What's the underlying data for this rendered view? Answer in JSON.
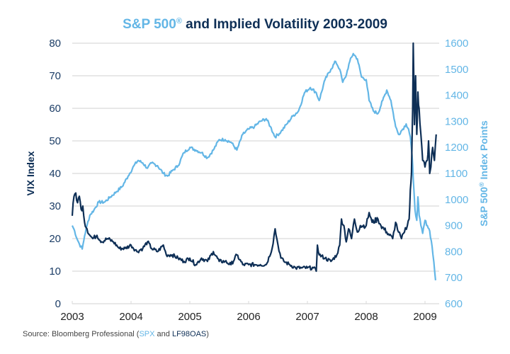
{
  "chart_data": {
    "type": "line",
    "title": {
      "part1": "S&P 500",
      "reg": "®",
      "part2": " and Implied Volatility 2003-2009"
    },
    "ylabel_left": "VIX Index",
    "ylabel_right": {
      "text": "S&P 500",
      "reg": "®",
      "suffix": " Index Points"
    },
    "xlabel": "",
    "x_ticks": [
      "2003",
      "2004",
      "2005",
      "2006",
      "2007",
      "2008",
      "2009"
    ],
    "y_left_ticks": [
      "0",
      "10",
      "20",
      "30",
      "40",
      "50",
      "60",
      "70",
      "80"
    ],
    "y_right_ticks": [
      "600",
      "700",
      "800",
      "900",
      "1000",
      "1100",
      "1200",
      "1300",
      "1400",
      "1500",
      "1600"
    ],
    "ylim_left": [
      0,
      80
    ],
    "ylim_right": [
      600,
      1600
    ],
    "xlim": [
      2003.0,
      2009.2
    ],
    "grid": true,
    "colors": {
      "vix": "#0e2f56",
      "spx": "#63b6e6",
      "grid": "#d9d9d9"
    },
    "series": [
      {
        "name": "S&P 500",
        "axis": "right",
        "color": "#63b6e6",
        "x": [
          2003.0,
          2003.04,
          2003.08,
          2003.12,
          2003.17,
          2003.21,
          2003.25,
          2003.3,
          2003.37,
          2003.45,
          2003.55,
          2003.65,
          2003.75,
          2003.85,
          2003.95,
          2004.05,
          2004.12,
          2004.2,
          2004.28,
          2004.35,
          2004.45,
          2004.55,
          2004.62,
          2004.7,
          2004.8,
          2004.9,
          2005.0,
          2005.1,
          2005.2,
          2005.3,
          2005.4,
          2005.5,
          2005.6,
          2005.7,
          2005.8,
          2005.9,
          2006.0,
          2006.1,
          2006.2,
          2006.3,
          2006.37,
          2006.45,
          2006.55,
          2006.65,
          2006.75,
          2006.85,
          2006.95,
          2007.05,
          2007.15,
          2007.2,
          2007.3,
          2007.4,
          2007.48,
          2007.55,
          2007.6,
          2007.65,
          2007.72,
          2007.78,
          2007.85,
          2007.92,
          2008.0,
          2008.05,
          2008.12,
          2008.2,
          2008.28,
          2008.35,
          2008.42,
          2008.5,
          2008.55,
          2008.62,
          2008.68,
          2008.72,
          2008.75,
          2008.78,
          2008.8,
          2008.83,
          2008.86,
          2008.88,
          2008.9,
          2008.93,
          2008.96,
          2009.0,
          2009.04,
          2009.08,
          2009.12,
          2009.15,
          2009.18
        ],
        "values": [
          900,
          880,
          850,
          830,
          810,
          860,
          900,
          940,
          960,
          990,
          990,
          1010,
          1030,
          1050,
          1090,
          1130,
          1150,
          1140,
          1120,
          1140,
          1130,
          1100,
          1090,
          1110,
          1130,
          1180,
          1200,
          1190,
          1180,
          1160,
          1190,
          1230,
          1230,
          1220,
          1190,
          1250,
          1270,
          1280,
          1300,
          1310,
          1280,
          1240,
          1260,
          1290,
          1320,
          1340,
          1410,
          1430,
          1410,
          1380,
          1460,
          1500,
          1530,
          1500,
          1450,
          1470,
          1530,
          1560,
          1540,
          1470,
          1460,
          1380,
          1340,
          1330,
          1380,
          1420,
          1380,
          1280,
          1250,
          1270,
          1290,
          1270,
          1240,
          1170,
          1080,
          960,
          920,
          1010,
          940,
          900,
          870,
          920,
          900,
          880,
          820,
          760,
          690
        ]
      },
      {
        "name": "VIX Index",
        "axis": "left",
        "color": "#0e2f56",
        "x": [
          2003.0,
          2003.03,
          2003.06,
          2003.09,
          2003.12,
          2003.15,
          2003.18,
          2003.21,
          2003.25,
          2003.3,
          2003.35,
          2003.42,
          2003.5,
          2003.6,
          2003.7,
          2003.8,
          2003.9,
          2004.0,
          2004.1,
          2004.2,
          2004.28,
          2004.35,
          2004.45,
          2004.55,
          2004.6,
          2004.7,
          2004.8,
          2004.9,
          2005.0,
          2005.1,
          2005.2,
          2005.3,
          2005.4,
          2005.5,
          2005.6,
          2005.7,
          2005.8,
          2005.9,
          2006.0,
          2006.1,
          2006.2,
          2006.3,
          2006.4,
          2006.45,
          2006.5,
          2006.55,
          2006.6,
          2006.7,
          2006.8,
          2006.9,
          2007.0,
          2007.1,
          2007.15,
          2007.17,
          2007.2,
          2007.3,
          2007.4,
          2007.5,
          2007.55,
          2007.58,
          2007.62,
          2007.66,
          2007.7,
          2007.75,
          2007.8,
          2007.85,
          2007.9,
          2008.0,
          2008.05,
          2008.1,
          2008.2,
          2008.25,
          2008.35,
          2008.45,
          2008.5,
          2008.55,
          2008.6,
          2008.65,
          2008.7,
          2008.73,
          2008.75,
          2008.77,
          2008.79,
          2008.8,
          2008.82,
          2008.84,
          2008.86,
          2008.88,
          2008.9,
          2008.93,
          2008.96,
          2009.0,
          2009.04,
          2009.06,
          2009.08,
          2009.1,
          2009.13,
          2009.16,
          2009.19
        ],
        "values": [
          27,
          33,
          34,
          31,
          33,
          29,
          30,
          25,
          23,
          21,
          20,
          21,
          19,
          20,
          19,
          17,
          17,
          18,
          16,
          17,
          19,
          17,
          16,
          18,
          15,
          15,
          14,
          13,
          14,
          12,
          14,
          13,
          16,
          13,
          13,
          12,
          15,
          12,
          12,
          12,
          12,
          12,
          17,
          23,
          18,
          14,
          13,
          12,
          11,
          11,
          11,
          11,
          10,
          18,
          15,
          14,
          13,
          15,
          18,
          26,
          24,
          19,
          23,
          20,
          26,
          22,
          24,
          24,
          28,
          25,
          26,
          24,
          22,
          20,
          25,
          22,
          20,
          22,
          24,
          26,
          35,
          40,
          60,
          80,
          55,
          70,
          52,
          65,
          60,
          52,
          44,
          42,
          44,
          50,
          40,
          42,
          48,
          44,
          52
        ]
      }
    ]
  },
  "source": {
    "prefix": "Source: Bloomberg Professional (",
    "spx": "SPX",
    "mid": " and ",
    "lf": "LF98OAS",
    "suffix": ")"
  }
}
